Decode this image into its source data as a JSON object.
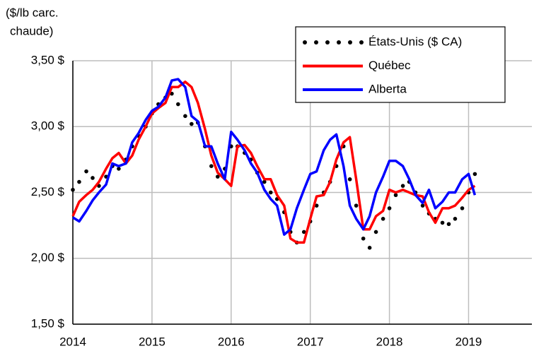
{
  "chart_data": {
    "type": "line",
    "ylabel": [
      "($/lb carc.",
      "chaude)"
    ],
    "x": [
      2014,
      2014.08,
      2014.17,
      2014.25,
      2014.33,
      2014.42,
      2014.5,
      2014.58,
      2014.67,
      2014.75,
      2014.83,
      2014.92,
      2015,
      2015.08,
      2015.17,
      2015.25,
      2015.33,
      2015.42,
      2015.5,
      2015.58,
      2015.67,
      2015.75,
      2015.83,
      2015.92,
      2016,
      2016.08,
      2016.17,
      2016.25,
      2016.33,
      2016.42,
      2016.5,
      2016.58,
      2016.67,
      2016.75,
      2016.83,
      2016.92,
      2017,
      2017.08,
      2017.17,
      2017.25,
      2017.33,
      2017.42,
      2017.5,
      2017.58,
      2017.67,
      2017.75,
      2017.83,
      2017.92,
      2018,
      2018.08,
      2018.17,
      2018.25,
      2018.33,
      2018.42,
      2018.5,
      2018.58,
      2018.67,
      2018.75,
      2018.83,
      2018.92,
      2019,
      2019.08
    ],
    "series": [
      {
        "name": "États-Unis ($ CA)",
        "color": "#000000",
        "style": "dots",
        "values": [
          2.52,
          2.58,
          2.66,
          2.61,
          2.55,
          2.62,
          2.7,
          2.68,
          2.75,
          2.85,
          2.93,
          3.0,
          3.1,
          3.17,
          3.22,
          3.25,
          3.17,
          3.08,
          3.02,
          3.03,
          2.85,
          2.7,
          2.62,
          2.68,
          2.85,
          2.85,
          2.8,
          2.75,
          2.65,
          2.58,
          2.5,
          2.45,
          2.35,
          2.2,
          2.12,
          2.2,
          2.28,
          2.4,
          2.5,
          2.58,
          2.7,
          2.85,
          2.6,
          2.4,
          2.15,
          2.08,
          2.2,
          2.3,
          2.38,
          2.48,
          2.55,
          2.58,
          2.5,
          2.4,
          2.34,
          2.3,
          2.27,
          2.26,
          2.3,
          2.38,
          2.5,
          2.64
        ]
      },
      {
        "name": "Québec",
        "color": "#ff0000",
        "style": "line",
        "values": [
          2.32,
          2.43,
          2.48,
          2.52,
          2.58,
          2.68,
          2.76,
          2.8,
          2.72,
          2.78,
          2.9,
          3.0,
          3.1,
          3.14,
          3.18,
          3.3,
          3.3,
          3.34,
          3.3,
          3.18,
          2.98,
          2.78,
          2.65,
          2.6,
          2.55,
          2.85,
          2.86,
          2.8,
          2.7,
          2.6,
          2.6,
          2.48,
          2.4,
          2.15,
          2.12,
          2.12,
          2.3,
          2.47,
          2.48,
          2.58,
          2.75,
          2.88,
          2.92,
          2.6,
          2.22,
          2.22,
          2.32,
          2.36,
          2.52,
          2.5,
          2.52,
          2.5,
          2.48,
          2.47,
          2.35,
          2.27,
          2.38,
          2.38,
          2.4,
          2.46,
          2.52,
          2.55
        ]
      },
      {
        "name": "Alberta",
        "color": "#0000ff",
        "style": "line",
        "values": [
          2.31,
          2.28,
          2.36,
          2.44,
          2.5,
          2.56,
          2.72,
          2.7,
          2.72,
          2.88,
          2.95,
          3.05,
          3.12,
          3.15,
          3.22,
          3.35,
          3.36,
          3.3,
          3.08,
          3.04,
          2.85,
          2.85,
          2.72,
          2.6,
          2.96,
          2.9,
          2.82,
          2.72,
          2.65,
          2.52,
          2.45,
          2.4,
          2.18,
          2.22,
          2.38,
          2.52,
          2.64,
          2.66,
          2.82,
          2.9,
          2.94,
          2.7,
          2.4,
          2.3,
          2.22,
          2.32,
          2.5,
          2.62,
          2.74,
          2.74,
          2.7,
          2.6,
          2.48,
          2.42,
          2.52,
          2.38,
          2.43,
          2.5,
          2.5,
          2.6,
          2.64,
          2.48
        ]
      }
    ],
    "xlim": [
      2014,
      2019.8
    ],
    "xticks": [
      2014,
      2015,
      2016,
      2017,
      2018,
      2019
    ],
    "ylim": [
      1.5,
      3.5
    ],
    "yticks": [
      {
        "value": 1.5,
        "label": "1,50 $"
      },
      {
        "value": 2,
        "label": "2,00 $"
      },
      {
        "value": 2.5,
        "label": "2,50 $"
      },
      {
        "value": 3,
        "label": "3,00 $"
      },
      {
        "value": 3.5,
        "label": "3,50 $"
      }
    ],
    "grid": true,
    "legend": "upper right"
  }
}
